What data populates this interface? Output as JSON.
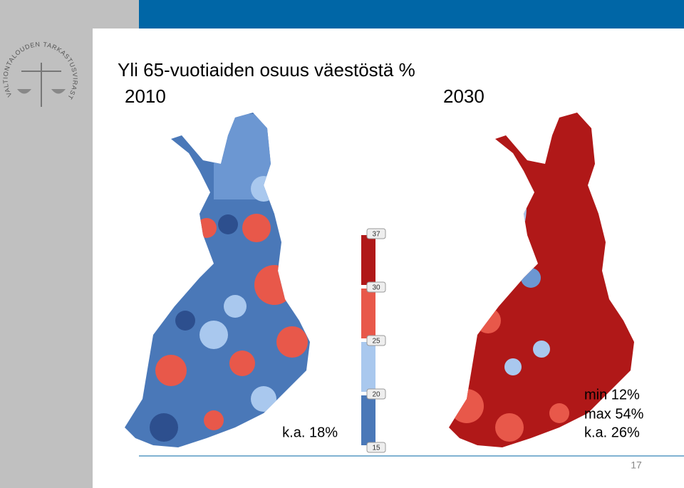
{
  "slide": {
    "logo_text": "VALTIONTALOUDEN TARKASTUSVIRASTO",
    "title": "Yli 65-vuotiaiden osuus väestöstä %",
    "years": [
      "2010",
      "2030"
    ],
    "legend": {
      "ticks": [
        37,
        30,
        25,
        20,
        15
      ]
    },
    "notes_2010": [
      "k.a. 18%"
    ],
    "notes_2030": [
      "min 12%",
      "max 54%",
      "k.a. 26%"
    ],
    "page_number": "17"
  }
}
